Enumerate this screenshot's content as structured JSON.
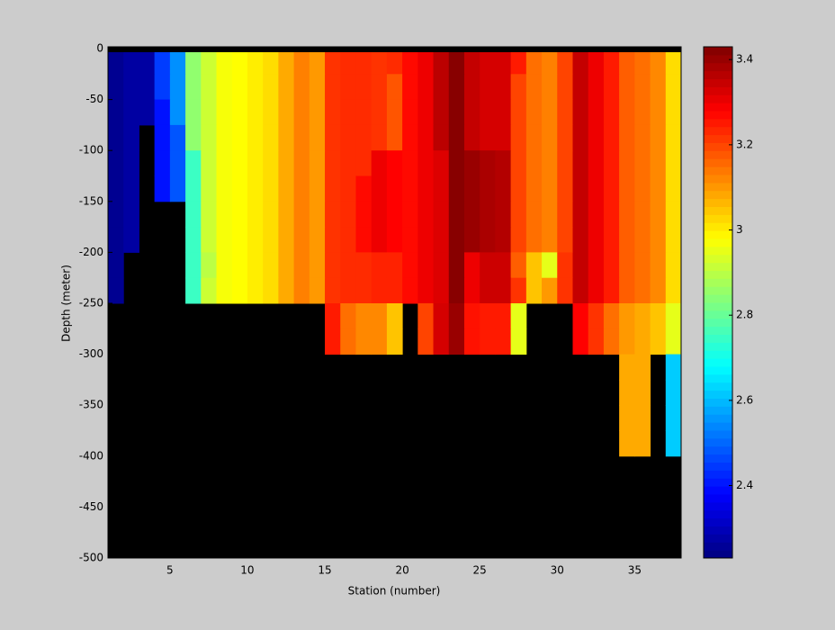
{
  "chart_data": {
    "type": "heatmap",
    "xlabel": "Station (number)",
    "ylabel": "Depth (meter)",
    "colormap": "jet",
    "nan_color": "#000000",
    "xlim": [
      1,
      38
    ],
    "ylim": [
      -500,
      0
    ],
    "xticks": [
      5,
      10,
      15,
      20,
      25,
      30,
      35
    ],
    "yticks": [
      0,
      -50,
      -100,
      -150,
      -200,
      -250,
      -300,
      -350,
      -400,
      -450,
      -500
    ],
    "clim": [
      2.23,
      3.43
    ],
    "cticks": [
      2.4,
      2.6,
      2.8,
      3,
      3.2,
      3.4
    ],
    "x_edges": [
      1,
      2,
      3,
      4,
      5,
      6,
      7,
      8,
      9,
      10,
      11,
      12,
      13,
      14,
      15,
      16,
      17,
      18,
      19,
      20,
      21,
      22,
      23,
      24,
      25,
      26,
      27,
      28,
      29,
      30,
      31,
      32,
      33,
      34,
      35,
      36,
      37,
      38
    ],
    "y_edges": [
      0,
      -25,
      -50,
      -75,
      -100,
      -125,
      -150,
      -175,
      -200,
      -225,
      -250,
      -275,
      -300,
      -325,
      -350,
      -375,
      -400
    ],
    "values": [
      [
        2.25,
        2.27,
        2.27,
        2.45,
        2.55,
        2.85,
        2.92,
        2.97,
        2.98,
        3.0,
        3.02,
        3.08,
        3.13,
        3.1,
        3.22,
        3.23,
        3.23,
        3.22,
        3.23,
        3.27,
        3.3,
        3.36,
        3.42,
        3.35,
        3.33,
        3.33,
        3.25,
        3.15,
        3.13,
        3.2,
        3.35,
        3.3,
        3.25,
        3.17,
        3.15,
        3.12,
        3.02
      ],
      [
        2.25,
        2.27,
        2.27,
        2.45,
        2.55,
        2.85,
        2.92,
        2.97,
        2.98,
        3.0,
        3.02,
        3.08,
        3.13,
        3.1,
        3.22,
        3.23,
        3.23,
        3.22,
        3.18,
        3.27,
        3.3,
        3.36,
        3.42,
        3.35,
        3.33,
        3.33,
        3.2,
        3.15,
        3.13,
        3.2,
        3.35,
        3.3,
        3.25,
        3.17,
        3.15,
        3.12,
        3.02
      ],
      [
        2.25,
        2.27,
        2.27,
        2.4,
        2.55,
        2.85,
        2.92,
        2.97,
        2.98,
        3.0,
        3.02,
        3.08,
        3.13,
        3.1,
        3.22,
        3.23,
        3.23,
        3.22,
        3.18,
        3.27,
        3.3,
        3.36,
        3.42,
        3.35,
        3.33,
        3.33,
        3.2,
        3.15,
        3.13,
        3.2,
        3.35,
        3.3,
        3.25,
        3.17,
        3.15,
        3.12,
        3.02
      ],
      [
        2.25,
        2.27,
        null,
        2.4,
        2.48,
        2.85,
        2.92,
        2.97,
        2.98,
        3.0,
        3.02,
        3.08,
        3.13,
        3.1,
        3.22,
        3.23,
        3.23,
        3.22,
        3.18,
        3.27,
        3.3,
        3.36,
        3.42,
        3.35,
        3.33,
        3.33,
        3.2,
        3.15,
        3.13,
        3.2,
        3.35,
        3.3,
        3.25,
        3.17,
        3.15,
        3.12,
        3.02
      ],
      [
        2.25,
        2.27,
        null,
        2.4,
        2.48,
        2.75,
        2.92,
        2.97,
        2.98,
        3.0,
        3.02,
        3.08,
        3.13,
        3.1,
        3.22,
        3.23,
        3.23,
        3.3,
        3.28,
        3.27,
        3.3,
        3.32,
        3.42,
        3.4,
        3.38,
        3.37,
        3.2,
        3.15,
        3.13,
        3.2,
        3.35,
        3.3,
        3.25,
        3.17,
        3.15,
        3.12,
        3.02
      ],
      [
        2.25,
        2.27,
        null,
        2.4,
        2.48,
        2.75,
        2.92,
        2.97,
        2.98,
        3.0,
        3.02,
        3.08,
        3.13,
        3.1,
        3.22,
        3.23,
        3.27,
        3.3,
        3.28,
        3.27,
        3.3,
        3.32,
        3.42,
        3.4,
        3.38,
        3.37,
        3.2,
        3.15,
        3.13,
        3.2,
        3.35,
        3.3,
        3.25,
        3.17,
        3.15,
        3.12,
        3.02
      ],
      [
        2.25,
        2.27,
        null,
        null,
        null,
        2.75,
        2.92,
        2.97,
        2.98,
        3.0,
        3.02,
        3.08,
        3.13,
        3.1,
        3.22,
        3.23,
        3.27,
        3.3,
        3.28,
        3.27,
        3.3,
        3.32,
        3.42,
        3.4,
        3.38,
        3.37,
        3.2,
        3.15,
        3.13,
        3.2,
        3.35,
        3.3,
        3.25,
        3.17,
        3.15,
        3.12,
        3.02
      ],
      [
        2.25,
        2.27,
        null,
        null,
        null,
        2.75,
        2.92,
        2.97,
        2.98,
        3.0,
        3.02,
        3.08,
        3.13,
        3.1,
        3.22,
        3.23,
        3.27,
        3.3,
        3.28,
        3.27,
        3.3,
        3.32,
        3.42,
        3.4,
        3.38,
        3.37,
        3.2,
        3.15,
        3.13,
        3.2,
        3.35,
        3.3,
        3.25,
        3.17,
        3.15,
        3.12,
        3.02
      ],
      [
        2.25,
        null,
        null,
        null,
        null,
        2.75,
        2.9,
        2.97,
        2.98,
        3.0,
        3.02,
        3.08,
        3.13,
        3.1,
        3.22,
        3.23,
        3.23,
        3.24,
        3.24,
        3.27,
        3.3,
        3.32,
        3.42,
        3.3,
        3.34,
        3.34,
        3.17,
        3.05,
        2.95,
        3.22,
        3.35,
        3.3,
        3.25,
        3.17,
        3.15,
        3.12,
        3.02
      ],
      [
        2.25,
        null,
        null,
        null,
        null,
        2.75,
        2.92,
        2.97,
        2.98,
        3.0,
        3.02,
        3.08,
        3.13,
        3.1,
        3.22,
        3.23,
        3.23,
        3.24,
        3.24,
        3.27,
        3.3,
        3.32,
        3.42,
        3.3,
        3.34,
        3.34,
        3.22,
        3.05,
        3.1,
        3.22,
        3.35,
        3.3,
        3.25,
        3.17,
        3.15,
        3.12,
        3.02
      ],
      [
        null,
        null,
        null,
        null,
        null,
        null,
        null,
        null,
        null,
        null,
        null,
        null,
        null,
        null,
        3.25,
        3.15,
        3.12,
        3.12,
        3.05,
        null,
        3.2,
        3.33,
        3.4,
        3.26,
        3.25,
        3.25,
        2.95,
        null,
        null,
        null,
        3.28,
        3.22,
        3.15,
        3.1,
        3.08,
        3.05,
        2.95
      ],
      [
        null,
        null,
        null,
        null,
        null,
        null,
        null,
        null,
        null,
        null,
        null,
        null,
        null,
        null,
        3.25,
        3.15,
        3.12,
        3.12,
        3.05,
        null,
        3.2,
        3.33,
        3.4,
        3.26,
        3.25,
        3.25,
        2.95,
        null,
        null,
        null,
        3.28,
        3.22,
        3.15,
        3.1,
        3.08,
        3.05,
        2.95
      ],
      [
        null,
        null,
        null,
        null,
        null,
        null,
        null,
        null,
        null,
        null,
        null,
        null,
        null,
        null,
        null,
        null,
        null,
        null,
        null,
        null,
        null,
        null,
        null,
        null,
        null,
        null,
        null,
        null,
        null,
        null,
        null,
        null,
        null,
        3.08,
        3.08,
        null,
        2.62
      ],
      [
        null,
        null,
        null,
        null,
        null,
        null,
        null,
        null,
        null,
        null,
        null,
        null,
        null,
        null,
        null,
        null,
        null,
        null,
        null,
        null,
        null,
        null,
        null,
        null,
        null,
        null,
        null,
        null,
        null,
        null,
        null,
        null,
        null,
        3.08,
        3.08,
        null,
        2.62
      ],
      [
        null,
        null,
        null,
        null,
        null,
        null,
        null,
        null,
        null,
        null,
        null,
        null,
        null,
        null,
        null,
        null,
        null,
        null,
        null,
        null,
        null,
        null,
        null,
        null,
        null,
        null,
        null,
        null,
        null,
        null,
        null,
        null,
        null,
        3.08,
        3.08,
        null,
        2.62
      ],
      [
        null,
        null,
        null,
        null,
        null,
        null,
        null,
        null,
        null,
        null,
        null,
        null,
        null,
        null,
        null,
        null,
        null,
        null,
        null,
        null,
        null,
        null,
        null,
        null,
        null,
        null,
        null,
        null,
        null,
        null,
        null,
        null,
        null,
        3.08,
        3.08,
        null,
        2.62
      ]
    ]
  }
}
